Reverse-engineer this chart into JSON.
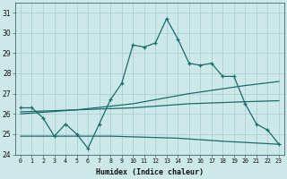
{
  "xlabel": "Humidex (Indice chaleur)",
  "bg_color": "#cce8e8",
  "line_color": "#1a6b6b",
  "grid_color": "#a8cccc",
  "xlim": [
    -0.5,
    23.5
  ],
  "ylim": [
    24,
    31.5
  ],
  "xticks": [
    0,
    1,
    2,
    3,
    4,
    5,
    6,
    7,
    8,
    9,
    10,
    11,
    12,
    13,
    14,
    15,
    16,
    17,
    18,
    19,
    20,
    21,
    22,
    23
  ],
  "yticks": [
    24,
    25,
    26,
    27,
    28,
    29,
    30,
    31
  ],
  "series1_x": [
    0,
    1,
    2,
    3,
    4,
    5,
    6,
    7,
    8,
    9,
    10,
    11,
    12,
    13,
    14,
    15,
    16,
    17,
    18,
    19,
    20,
    21,
    22,
    23
  ],
  "series1_y": [
    26.3,
    26.3,
    25.8,
    24.9,
    25.5,
    25.0,
    24.3,
    25.5,
    26.7,
    27.5,
    29.4,
    29.3,
    29.5,
    30.7,
    29.7,
    28.5,
    28.4,
    28.5,
    27.85,
    27.85,
    26.5,
    25.5,
    25.2,
    24.5
  ],
  "series2_x": [
    0,
    5,
    10,
    15,
    20,
    23
  ],
  "series2_y": [
    26.1,
    26.2,
    26.3,
    26.5,
    26.6,
    26.65
  ],
  "series3_x": [
    0,
    5,
    10,
    15,
    20,
    23
  ],
  "series3_y": [
    26.0,
    26.2,
    26.5,
    27.0,
    27.4,
    27.6
  ],
  "series4_x": [
    0,
    8,
    14,
    18,
    23
  ],
  "series4_y": [
    24.9,
    24.9,
    24.8,
    24.65,
    24.5
  ]
}
